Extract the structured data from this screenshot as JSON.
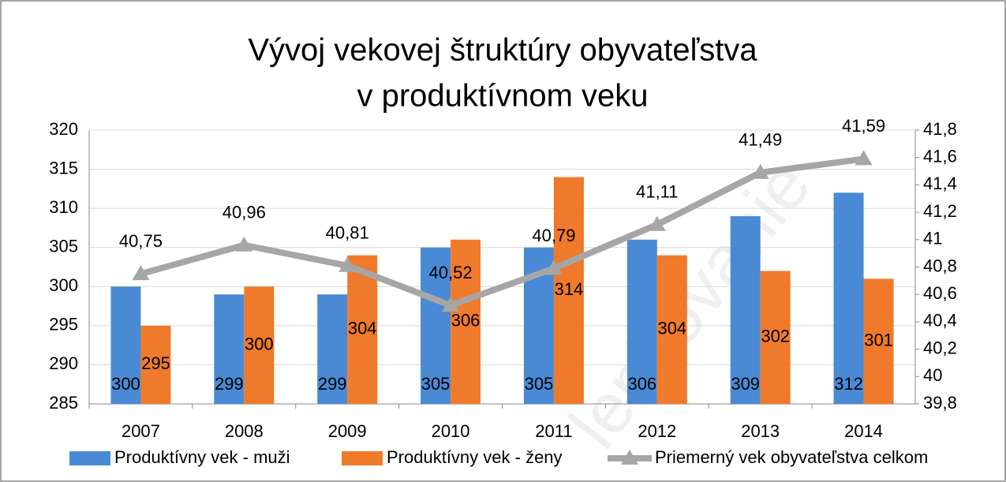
{
  "chart_data": {
    "type": "bar",
    "title": [
      "Vývoj vekovej štruktúry obyvateľstva",
      "v produktívnom veku"
    ],
    "watermark": "lenkovanie",
    "categories": [
      "2007",
      "2008",
      "2009",
      "2010",
      "2011",
      "2012",
      "2013",
      "2014"
    ],
    "series": [
      {
        "name": "Produktívny vek - muži",
        "color": "#4a8ad4",
        "type": "bar",
        "values": [
          300,
          299,
          299,
          305,
          305,
          306,
          309,
          312
        ]
      },
      {
        "name": "Produktívny vek - ženy",
        "color": "#ef7a2b",
        "type": "bar",
        "values": [
          295,
          300,
          304,
          306,
          314,
          304,
          302,
          301
        ]
      },
      {
        "name": "Priemerný vek obyvateľstva celkom",
        "color": "#a6a6a6",
        "type": "line",
        "axis": "y2",
        "values": [
          40.75,
          40.96,
          40.81,
          40.52,
          40.79,
          41.11,
          41.49,
          41.59
        ],
        "value_labels": [
          "40,75",
          "40,96",
          "40,81",
          "40,52",
          "40,79",
          "41,11",
          "41,49",
          "41,59"
        ]
      }
    ],
    "ylim": [
      285,
      320
    ],
    "yticks": [
      285,
      290,
      295,
      300,
      305,
      310,
      315,
      320
    ],
    "y2lim": [
      39.8,
      41.8
    ],
    "y2ticks": [
      {
        "value": 39.8,
        "label": "39,8"
      },
      40,
      {
        "value": 40.2,
        "label": "40,2"
      },
      {
        "value": 40.4,
        "label": "40,4"
      },
      {
        "value": 40.6,
        "label": "40,6"
      },
      {
        "value": 40.8,
        "label": "40,8"
      },
      41,
      {
        "value": 41.2,
        "label": "41,2"
      },
      {
        "value": 41.4,
        "label": "41,4"
      },
      {
        "value": 41.6,
        "label": "41,6"
      },
      {
        "value": 41.8,
        "label": "41,8"
      }
    ],
    "grid": true,
    "legend": "bottom"
  }
}
